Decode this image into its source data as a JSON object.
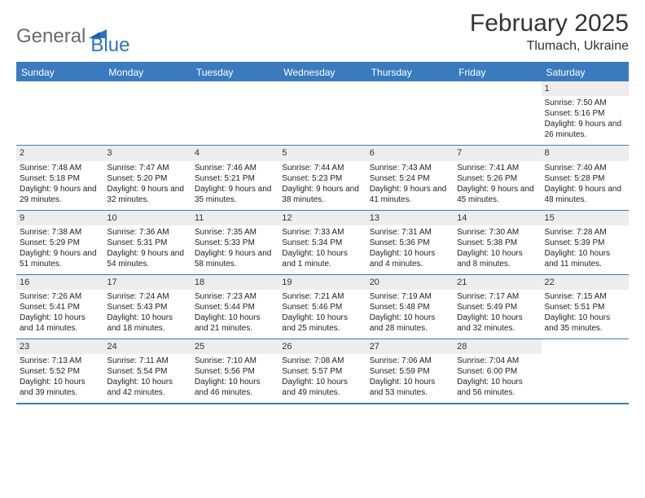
{
  "logo": {
    "text1": "General",
    "text2": "Blue"
  },
  "title": "February 2025",
  "location": "Tlumach, Ukraine",
  "colors": {
    "header_bar": "#3a7bbf",
    "header_text": "#ffffff",
    "daynum_bg": "#ededed",
    "border": "#3a7bbf",
    "body_text": "#222222",
    "logo_gray": "#6a6a6a",
    "logo_blue": "#2a74c1"
  },
  "day_headers": [
    "Sunday",
    "Monday",
    "Tuesday",
    "Wednesday",
    "Thursday",
    "Friday",
    "Saturday"
  ],
  "weeks": [
    [
      {
        "empty": true
      },
      {
        "empty": true
      },
      {
        "empty": true
      },
      {
        "empty": true
      },
      {
        "empty": true
      },
      {
        "empty": true
      },
      {
        "day": "1",
        "sunrise": "Sunrise: 7:50 AM",
        "sunset": "Sunset: 5:16 PM",
        "daylight": "Daylight: 9 hours and 26 minutes."
      }
    ],
    [
      {
        "day": "2",
        "sunrise": "Sunrise: 7:48 AM",
        "sunset": "Sunset: 5:18 PM",
        "daylight": "Daylight: 9 hours and 29 minutes."
      },
      {
        "day": "3",
        "sunrise": "Sunrise: 7:47 AM",
        "sunset": "Sunset: 5:20 PM",
        "daylight": "Daylight: 9 hours and 32 minutes."
      },
      {
        "day": "4",
        "sunrise": "Sunrise: 7:46 AM",
        "sunset": "Sunset: 5:21 PM",
        "daylight": "Daylight: 9 hours and 35 minutes."
      },
      {
        "day": "5",
        "sunrise": "Sunrise: 7:44 AM",
        "sunset": "Sunset: 5:23 PM",
        "daylight": "Daylight: 9 hours and 38 minutes."
      },
      {
        "day": "6",
        "sunrise": "Sunrise: 7:43 AM",
        "sunset": "Sunset: 5:24 PM",
        "daylight": "Daylight: 9 hours and 41 minutes."
      },
      {
        "day": "7",
        "sunrise": "Sunrise: 7:41 AM",
        "sunset": "Sunset: 5:26 PM",
        "daylight": "Daylight: 9 hours and 45 minutes."
      },
      {
        "day": "8",
        "sunrise": "Sunrise: 7:40 AM",
        "sunset": "Sunset: 5:28 PM",
        "daylight": "Daylight: 9 hours and 48 minutes."
      }
    ],
    [
      {
        "day": "9",
        "sunrise": "Sunrise: 7:38 AM",
        "sunset": "Sunset: 5:29 PM",
        "daylight": "Daylight: 9 hours and 51 minutes."
      },
      {
        "day": "10",
        "sunrise": "Sunrise: 7:36 AM",
        "sunset": "Sunset: 5:31 PM",
        "daylight": "Daylight: 9 hours and 54 minutes."
      },
      {
        "day": "11",
        "sunrise": "Sunrise: 7:35 AM",
        "sunset": "Sunset: 5:33 PM",
        "daylight": "Daylight: 9 hours and 58 minutes."
      },
      {
        "day": "12",
        "sunrise": "Sunrise: 7:33 AM",
        "sunset": "Sunset: 5:34 PM",
        "daylight": "Daylight: 10 hours and 1 minute."
      },
      {
        "day": "13",
        "sunrise": "Sunrise: 7:31 AM",
        "sunset": "Sunset: 5:36 PM",
        "daylight": "Daylight: 10 hours and 4 minutes."
      },
      {
        "day": "14",
        "sunrise": "Sunrise: 7:30 AM",
        "sunset": "Sunset: 5:38 PM",
        "daylight": "Daylight: 10 hours and 8 minutes."
      },
      {
        "day": "15",
        "sunrise": "Sunrise: 7:28 AM",
        "sunset": "Sunset: 5:39 PM",
        "daylight": "Daylight: 10 hours and 11 minutes."
      }
    ],
    [
      {
        "day": "16",
        "sunrise": "Sunrise: 7:26 AM",
        "sunset": "Sunset: 5:41 PM",
        "daylight": "Daylight: 10 hours and 14 minutes."
      },
      {
        "day": "17",
        "sunrise": "Sunrise: 7:24 AM",
        "sunset": "Sunset: 5:43 PM",
        "daylight": "Daylight: 10 hours and 18 minutes."
      },
      {
        "day": "18",
        "sunrise": "Sunrise: 7:23 AM",
        "sunset": "Sunset: 5:44 PM",
        "daylight": "Daylight: 10 hours and 21 minutes."
      },
      {
        "day": "19",
        "sunrise": "Sunrise: 7:21 AM",
        "sunset": "Sunset: 5:46 PM",
        "daylight": "Daylight: 10 hours and 25 minutes."
      },
      {
        "day": "20",
        "sunrise": "Sunrise: 7:19 AM",
        "sunset": "Sunset: 5:48 PM",
        "daylight": "Daylight: 10 hours and 28 minutes."
      },
      {
        "day": "21",
        "sunrise": "Sunrise: 7:17 AM",
        "sunset": "Sunset: 5:49 PM",
        "daylight": "Daylight: 10 hours and 32 minutes."
      },
      {
        "day": "22",
        "sunrise": "Sunrise: 7:15 AM",
        "sunset": "Sunset: 5:51 PM",
        "daylight": "Daylight: 10 hours and 35 minutes."
      }
    ],
    [
      {
        "day": "23",
        "sunrise": "Sunrise: 7:13 AM",
        "sunset": "Sunset: 5:52 PM",
        "daylight": "Daylight: 10 hours and 39 minutes."
      },
      {
        "day": "24",
        "sunrise": "Sunrise: 7:11 AM",
        "sunset": "Sunset: 5:54 PM",
        "daylight": "Daylight: 10 hours and 42 minutes."
      },
      {
        "day": "25",
        "sunrise": "Sunrise: 7:10 AM",
        "sunset": "Sunset: 5:56 PM",
        "daylight": "Daylight: 10 hours and 46 minutes."
      },
      {
        "day": "26",
        "sunrise": "Sunrise: 7:08 AM",
        "sunset": "Sunset: 5:57 PM",
        "daylight": "Daylight: 10 hours and 49 minutes."
      },
      {
        "day": "27",
        "sunrise": "Sunrise: 7:06 AM",
        "sunset": "Sunset: 5:59 PM",
        "daylight": "Daylight: 10 hours and 53 minutes."
      },
      {
        "day": "28",
        "sunrise": "Sunrise: 7:04 AM",
        "sunset": "Sunset: 6:00 PM",
        "daylight": "Daylight: 10 hours and 56 minutes."
      },
      {
        "empty": true
      }
    ]
  ]
}
